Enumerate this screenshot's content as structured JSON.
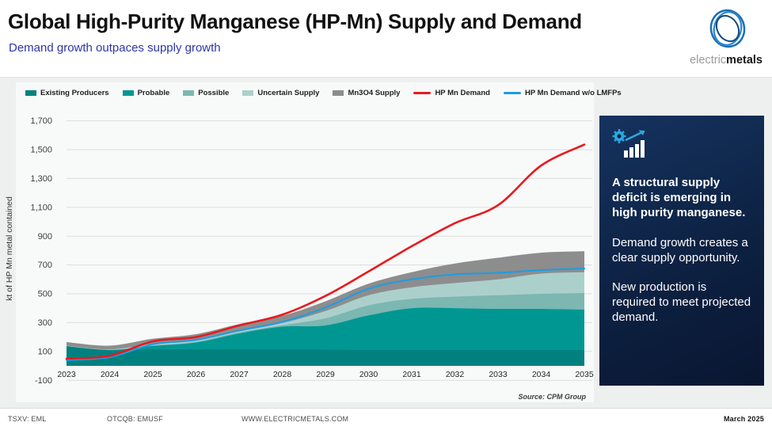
{
  "header": {
    "title": "Global High-Purity Manganese (HP-Mn) Supply and Demand",
    "subtitle": "Demand growth outpaces supply growth"
  },
  "logo": {
    "brand_light": "electric",
    "brand_bold": "metals"
  },
  "callout": {
    "icon": "growth-chart-gear-icon",
    "headline": "A structural supply deficit is emerging in high purity manganese.",
    "body1": "Demand growth creates a clear supply opportunity.",
    "body2": "New production is required to meet projected demand."
  },
  "footer": {
    "ticker_tsxv": "TSXV: EML",
    "ticker_otcqb": "OTCQB: EMUSF",
    "website": "WWW.ELECTRICMETALS.COM",
    "date": "March 2025"
  },
  "colors": {
    "accent_blue": "#2c37a6",
    "navy_box": "#0d2142",
    "icon_cyan": "#2aa9e0",
    "grid": "#dcdddc",
    "plot_bg": "#f8f9f9",
    "band_bg": "#eef0ef"
  },
  "chart_data": {
    "type": "area",
    "stacked": true,
    "ylabel": "kt of HP Mn metal contained",
    "ylim": [
      -100,
      1700
    ],
    "ytick_step": 200,
    "grid": true,
    "legend_position": "top",
    "source": "Source: CPM Group",
    "categories": [
      2023,
      2024,
      2025,
      2026,
      2027,
      2028,
      2029,
      2030,
      2031,
      2032,
      2033,
      2034,
      2035
    ],
    "series": [
      {
        "name": "Existing Producers",
        "kind": "area",
        "color": "#00817f",
        "values": [
          135,
          108,
          115,
          115,
          115,
          112,
          112,
          110,
          110,
          110,
          110,
          110,
          110
        ]
      },
      {
        "name": "Probable",
        "kind": "area",
        "color": "#009793",
        "values": [
          2,
          2,
          23,
          47,
          110,
          160,
          168,
          240,
          290,
          290,
          285,
          285,
          280
        ]
      },
      {
        "name": "Possible",
        "kind": "area",
        "color": "#7cb7b1",
        "values": [
          1,
          2,
          4,
          5,
          7,
          10,
          50,
          70,
          65,
          80,
          95,
          105,
          115
        ]
      },
      {
        "name": "Uncertain Supply",
        "kind": "area",
        "color": "#abd0cc",
        "values": [
          2,
          3,
          10,
          8,
          8,
          15,
          50,
          70,
          80,
          95,
          110,
          140,
          145
        ]
      },
      {
        "name": "Mn3O4 Supply",
        "kind": "area",
        "color": "#8d8d8d",
        "values": [
          25,
          25,
          36,
          45,
          50,
          50,
          68,
          80,
          105,
          135,
          150,
          145,
          145
        ]
      },
      {
        "name": "HP Mn Demand",
        "kind": "line",
        "color": "#e8191d",
        "values": [
          50,
          70,
          170,
          200,
          280,
          355,
          485,
          655,
          830,
          990,
          1115,
          1390,
          1535
        ]
      },
      {
        "name": "HP Mn Demand w/o LMFPs",
        "kind": "line",
        "color": "#1e9de2",
        "values": [
          40,
          60,
          150,
          180,
          245,
          305,
          405,
          535,
          600,
          635,
          645,
          665,
          675
        ]
      }
    ]
  }
}
